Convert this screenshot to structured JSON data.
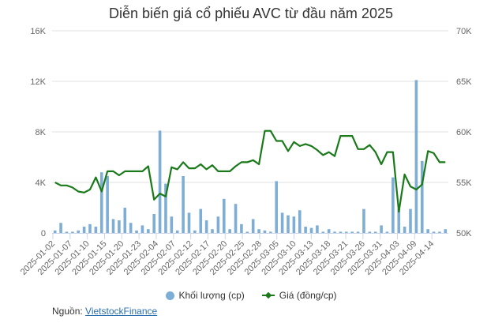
{
  "chart_data": {
    "type": "bar+line",
    "title": "Diễn biến giá cổ phiếu AVC từ đầu năm 2025",
    "xlabel": "",
    "ylabel_left": "Khối lượng (cp)",
    "ylabel_right": "Giá (đồng/cp)",
    "left_axis": {
      "min": 0,
      "max": 16000,
      "ticks": [
        0,
        4000,
        8000,
        12000,
        16000
      ],
      "tick_labels": [
        "0",
        "4K",
        "8K",
        "12K",
        "16K"
      ]
    },
    "right_axis": {
      "min": 50000,
      "max": 70000,
      "ticks": [
        50000,
        55000,
        60000,
        65000,
        70000
      ],
      "tick_labels": [
        "50K",
        "55K",
        "60K",
        "65K",
        "70K"
      ]
    },
    "x_tick_labels": [
      "2025-01-02",
      "2025-01-07",
      "2025-01-10",
      "2025-01-15",
      "2025-01-20",
      "2025-01-23",
      "2025-02-04",
      "2025-02-07",
      "2025-02-12",
      "2025-02-17",
      "2025-02-20",
      "2025-02-25",
      "2025-02-28",
      "2025-03-05",
      "2025-03-10",
      "2025-03-13",
      "2025-03-18",
      "2025-03-21",
      "2025-03-26",
      "2025-03-31",
      "2025-04-03",
      "2025-04-09",
      "2025-04-14"
    ],
    "grid": true,
    "legend_position": "bottom",
    "series": [
      {
        "name": "Khối lượng (cp)",
        "type": "bar",
        "axis": "left",
        "color": "#7eaed6",
        "values": [
          200,
          800,
          100,
          100,
          200,
          500,
          700,
          500,
          4800,
          4500,
          1100,
          1000,
          2000,
          800,
          200,
          600,
          300,
          1500,
          8100,
          3900,
          1300,
          200,
          4500,
          1600,
          200,
          1900,
          1000,
          300,
          1300,
          2700,
          300,
          2300,
          700,
          100,
          1100,
          300,
          200,
          100,
          4100,
          1600,
          1400,
          1300,
          1800,
          500,
          400,
          600,
          100,
          300,
          100,
          100,
          100,
          100,
          100,
          1900,
          100,
          100,
          600,
          100,
          4400,
          1900,
          500,
          1900,
          12100,
          5700,
          300,
          100,
          100,
          300
        ]
      },
      {
        "name": "Giá (đồng/cp)",
        "type": "line",
        "axis": "right",
        "color": "#1a7a1a",
        "values": [
          55000,
          54700,
          54700,
          54500,
          54100,
          54000,
          54300,
          55500,
          54100,
          56100,
          56100,
          55700,
          56100,
          56100,
          56100,
          56100,
          56600,
          53300,
          53900,
          53600,
          56500,
          56300,
          57000,
          56400,
          56400,
          56800,
          56300,
          56700,
          56100,
          56100,
          56100,
          56600,
          57000,
          57000,
          57200,
          56800,
          60100,
          60100,
          59100,
          59100,
          58100,
          59000,
          58600,
          58800,
          58600,
          58200,
          57700,
          58000,
          57600,
          59600,
          59600,
          59600,
          58300,
          58300,
          58700,
          58000,
          56800,
          58000,
          58000,
          52100,
          55800,
          54600,
          54300,
          54800,
          58100,
          57900,
          57000,
          57000
        ]
      }
    ]
  },
  "legend": {
    "volume_label": "Khối lượng (cp)",
    "price_label": "Giá (đồng/cp)"
  },
  "source": {
    "prefix": "Nguồn:",
    "link_text": "VietstockFinance"
  }
}
